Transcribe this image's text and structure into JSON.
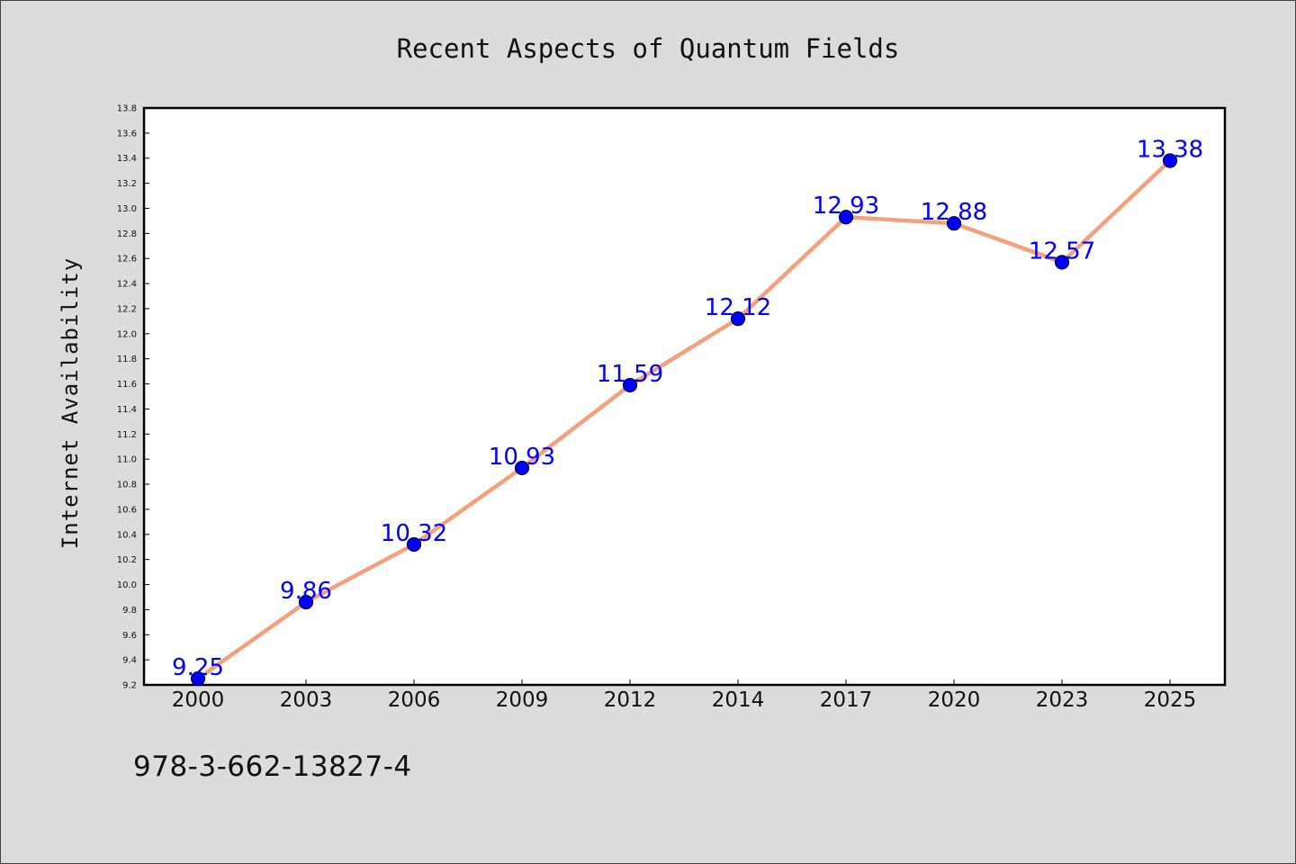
{
  "chart_data": {
    "type": "line",
    "title": "Recent Aspects of Quantum Fields",
    "xlabel": "",
    "ylabel": "Internet Availability",
    "categories": [
      "2000",
      "2003",
      "2006",
      "2009",
      "2012",
      "2014",
      "2017",
      "2020",
      "2023",
      "2025"
    ],
    "series": [
      {
        "values": [
          9.25,
          9.86,
          10.32,
          10.93,
          11.59,
          12.12,
          12.93,
          12.88,
          12.57,
          13.38
        ],
        "data_labels": [
          "9.25",
          "9.86",
          "10.32",
          "10.93",
          "11.59",
          "12.12",
          "12.93",
          "12.88",
          "12.57",
          "13.38"
        ]
      }
    ],
    "ylim": [
      9.2,
      13.8
    ],
    "yticks": [
      "9.2",
      "9.4",
      "9.6",
      "9.8",
      "10.0",
      "10.2",
      "10.4",
      "10.6",
      "10.8",
      "11.0",
      "11.2",
      "11.4",
      "11.6",
      "11.8",
      "12.0",
      "12.2",
      "12.4",
      "12.6",
      "12.8",
      "13.0",
      "13.2",
      "13.4",
      "13.6",
      "13.8"
    ],
    "grid": false,
    "legend": "none",
    "colors": {
      "line": "#f4a07c",
      "marker": "#0000ff",
      "marker_edge": "#000033",
      "data_label": "#0000ff",
      "background": "#dcdcdc",
      "plot_background": "#ffffff"
    }
  },
  "footer": {
    "isbn": "978-3-662-13827-4"
  }
}
